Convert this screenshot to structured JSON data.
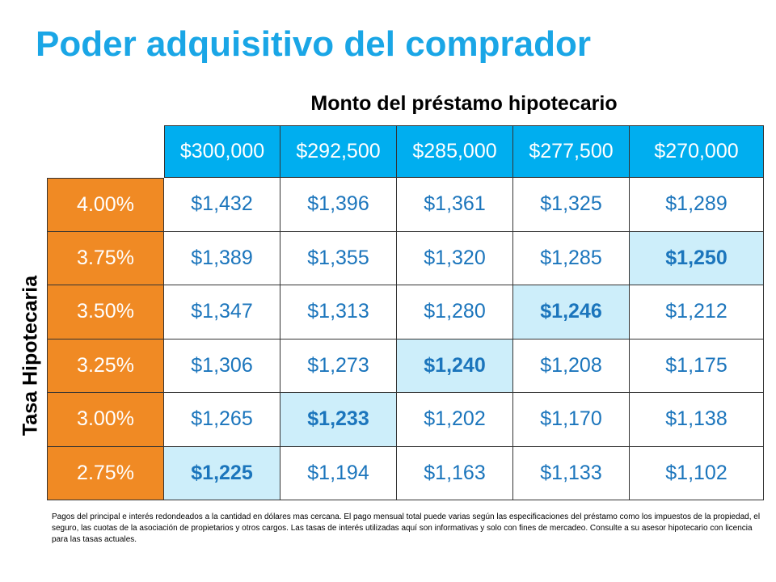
{
  "title": "Poder adquisitivo del comprador",
  "chart_data": {
    "type": "table",
    "column_title": "Monto del préstamo hipotecario",
    "row_title": "Tasa Hipotecaria",
    "columns": [
      "$300,000",
      "$292,500",
      "$285,000",
      "$277,500",
      "$270,000"
    ],
    "rows": [
      {
        "rate": "4.00%",
        "values": [
          "$1,432",
          "$1,396",
          "$1,361",
          "$1,325",
          "$1,289"
        ],
        "highlight": -1
      },
      {
        "rate": "3.75%",
        "values": [
          "$1,389",
          "$1,355",
          "$1,320",
          "$1,285",
          "$1,250"
        ],
        "highlight": 4
      },
      {
        "rate": "3.50%",
        "values": [
          "$1,347",
          "$1,313",
          "$1,280",
          "$1,246",
          "$1,212"
        ],
        "highlight": 3
      },
      {
        "rate": "3.25%",
        "values": [
          "$1,306",
          "$1,273",
          "$1,240",
          "$1,208",
          "$1,175"
        ],
        "highlight": 2
      },
      {
        "rate": "3.00%",
        "values": [
          "$1,265",
          "$1,233",
          "$1,202",
          "$1,170",
          "$1,138"
        ],
        "highlight": 1
      },
      {
        "rate": "2.75%",
        "values": [
          "$1,225",
          "$1,194",
          "$1,163",
          "$1,133",
          "$1,102"
        ],
        "highlight": 0
      }
    ]
  },
  "colors": {
    "title": "#1aa6e6",
    "header": "#00aeef",
    "rate": "#f08a24",
    "value_text": "#1b75bc",
    "highlight": "#cdeefa"
  },
  "footnote": "Pagos del principal e interés redondeados a la cantidad en dólares mas cercana. El pago mensual total puede varias según las especificaciones del préstamo como los impuestos de la propiedad, el seguro, las cuotas de la asociación de propietarios y otros cargos. Las tasas de interés utilizadas aquí son informativas y solo con fines de mercadeo. Consulte a su asesor hipotecario con licencia para las tasas actuales."
}
